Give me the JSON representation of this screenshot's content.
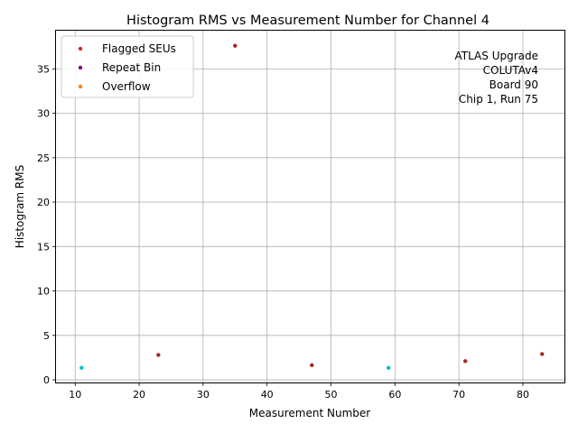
{
  "chart_data": {
    "type": "scatter",
    "title": "Histogram RMS vs Measurement Number for Channel 4",
    "xlabel": "Measurement Number",
    "ylabel": "Histogram RMS",
    "xlim": [
      7,
      86.5
    ],
    "ylim": [
      -0.3,
      39.3
    ],
    "xticks": [
      10,
      20,
      30,
      40,
      50,
      60,
      70,
      80
    ],
    "yticks": [
      0,
      5,
      10,
      15,
      20,
      25,
      30,
      35
    ],
    "grid": true,
    "legend_position": "top-left",
    "annotation": [
      "ATLAS Upgrade",
      "COLUTAv4",
      "Board 90",
      "Chip 1, Run 75"
    ],
    "series": [
      {
        "name": "Flagged SEUs",
        "color": "#d62728",
        "points": []
      },
      {
        "name": "Repeat Bin",
        "color": "#800080",
        "points": []
      },
      {
        "name": "Overflow",
        "color": "#ff7f0e",
        "points": []
      },
      {
        "color": "#a52a2a",
        "points": [
          [
            23,
            2.8
          ],
          [
            35,
            37.6
          ],
          [
            47,
            1.65
          ],
          [
            71,
            2.1
          ],
          [
            83,
            2.9
          ]
        ]
      },
      {
        "color": "#00bfc4",
        "points": [
          [
            11,
            1.35
          ],
          [
            59,
            1.35
          ]
        ]
      }
    ]
  }
}
